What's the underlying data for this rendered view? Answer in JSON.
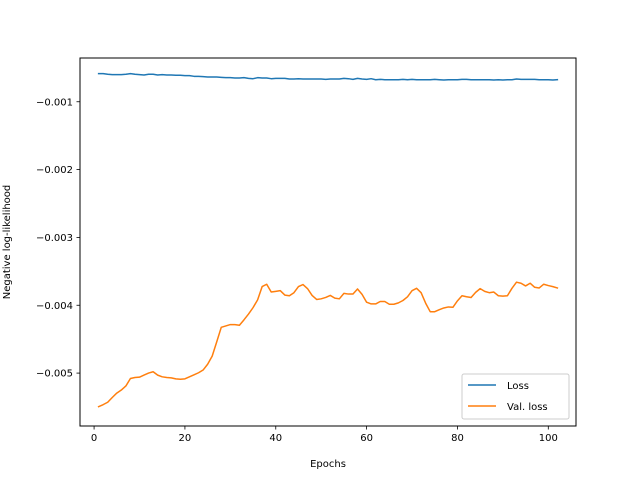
{
  "chart_data": {
    "type": "line",
    "title": "",
    "xlabel": "Epochs",
    "ylabel": "Negative log-likelihood",
    "xlim": [
      -3.1,
      106.1
    ],
    "ylim": [
      -0.00578,
      -0.000355
    ],
    "xticks": [
      0,
      20,
      40,
      60,
      80,
      100
    ],
    "xtick_labels": [
      "0",
      "20",
      "40",
      "60",
      "80",
      "100"
    ],
    "yticks": [
      -0.005,
      -0.004,
      -0.003,
      -0.002,
      -0.001
    ],
    "ytick_labels": [
      "−0.005",
      "−0.004",
      "−0.003",
      "−0.002",
      "−0.001"
    ],
    "grid": false,
    "legend_position": "lower-right",
    "series": [
      {
        "name": "Loss",
        "color": "#1f77b4",
        "x": [
          1,
          2,
          3,
          4,
          5,
          6,
          7,
          8,
          9,
          10,
          11,
          12,
          13,
          14,
          15,
          16,
          17,
          18,
          19,
          20,
          21,
          22,
          23,
          24,
          25,
          26,
          27,
          28,
          29,
          30,
          31,
          32,
          33,
          34,
          35,
          36,
          37,
          38,
          39,
          40,
          41,
          42,
          43,
          44,
          45,
          46,
          47,
          48,
          49,
          50,
          51,
          52,
          53,
          54,
          55,
          56,
          57,
          58,
          59,
          60,
          61,
          62,
          63,
          64,
          65,
          66,
          67,
          68,
          69,
          70,
          71,
          72,
          73,
          74,
          75,
          76,
          77,
          78,
          79,
          80,
          81,
          82,
          83,
          84,
          85,
          86,
          87,
          88,
          89,
          90,
          91,
          92,
          93,
          94,
          95,
          96,
          97,
          98,
          99,
          100,
          101,
          102
        ],
        "y": [
          -0.000585,
          -0.000585,
          -0.000595,
          -0.0006,
          -0.0006,
          -0.0006,
          -0.000595,
          -0.000585,
          -0.000595,
          -0.0006,
          -0.000605,
          -0.000595,
          -0.000595,
          -0.000605,
          -0.0006,
          -0.000605,
          -0.000605,
          -0.00061,
          -0.00061,
          -0.000615,
          -0.000615,
          -0.000625,
          -0.000625,
          -0.00063,
          -0.000635,
          -0.000635,
          -0.000635,
          -0.00064,
          -0.000645,
          -0.000645,
          -0.00065,
          -0.00065,
          -0.000645,
          -0.000655,
          -0.00066,
          -0.000645,
          -0.00065,
          -0.00065,
          -0.00066,
          -0.000655,
          -0.000655,
          -0.000655,
          -0.000665,
          -0.000665,
          -0.00066,
          -0.000665,
          -0.000665,
          -0.000665,
          -0.000665,
          -0.000665,
          -0.00067,
          -0.000665,
          -0.000665,
          -0.000665,
          -0.000655,
          -0.00066,
          -0.00067,
          -0.000655,
          -0.000665,
          -0.00067,
          -0.00066,
          -0.000675,
          -0.00067,
          -0.000675,
          -0.000675,
          -0.000675,
          -0.000675,
          -0.00067,
          -0.000675,
          -0.00067,
          -0.000675,
          -0.000675,
          -0.000675,
          -0.000675,
          -0.00067,
          -0.000675,
          -0.00068,
          -0.000675,
          -0.000675,
          -0.000675,
          -0.00067,
          -0.00067,
          -0.000675,
          -0.000675,
          -0.000675,
          -0.000675,
          -0.000675,
          -0.00068,
          -0.000675,
          -0.00068,
          -0.000675,
          -0.000675,
          -0.000665,
          -0.00067,
          -0.00067,
          -0.00067,
          -0.00067,
          -0.000675,
          -0.000675,
          -0.000675,
          -0.00068,
          -0.000675
        ]
      },
      {
        "name": "Val. loss",
        "color": "#ff7f0e",
        "x": [
          1,
          2,
          3,
          4,
          5,
          6,
          7,
          8,
          9,
          10,
          11,
          12,
          13,
          14,
          15,
          16,
          17,
          18,
          19,
          20,
          21,
          22,
          23,
          24,
          25,
          26,
          27,
          28,
          29,
          30,
          31,
          32,
          33,
          34,
          35,
          36,
          37,
          38,
          39,
          40,
          41,
          42,
          43,
          44,
          45,
          46,
          47,
          48,
          49,
          50,
          51,
          52,
          53,
          54,
          55,
          56,
          57,
          58,
          59,
          60,
          61,
          62,
          63,
          64,
          65,
          66,
          67,
          68,
          69,
          70,
          71,
          72,
          73,
          74,
          75,
          76,
          77,
          78,
          79,
          80,
          81,
          82,
          83,
          84,
          85,
          86,
          87,
          88,
          89,
          90,
          91,
          92,
          93,
          94,
          95,
          96,
          97,
          98,
          99,
          100,
          101,
          102
        ],
        "y": [
          -0.005495,
          -0.005465,
          -0.00543,
          -0.00536,
          -0.005295,
          -0.00525,
          -0.00519,
          -0.00508,
          -0.005065,
          -0.00506,
          -0.00503,
          -0.005,
          -0.00498,
          -0.00503,
          -0.005055,
          -0.005065,
          -0.00507,
          -0.005085,
          -0.00509,
          -0.005085,
          -0.005055,
          -0.005025,
          -0.004995,
          -0.004955,
          -0.00487,
          -0.00475,
          -0.00454,
          -0.004325,
          -0.004305,
          -0.004285,
          -0.004285,
          -0.004295,
          -0.004215,
          -0.00413,
          -0.004035,
          -0.00392,
          -0.003725,
          -0.00369,
          -0.003805,
          -0.003795,
          -0.003785,
          -0.00385,
          -0.00386,
          -0.003815,
          -0.003725,
          -0.003695,
          -0.003755,
          -0.003855,
          -0.003915,
          -0.003905,
          -0.003885,
          -0.003855,
          -0.003895,
          -0.003905,
          -0.003825,
          -0.003835,
          -0.003835,
          -0.00376,
          -0.00384,
          -0.003955,
          -0.00398,
          -0.00398,
          -0.003945,
          -0.003945,
          -0.003985,
          -0.003985,
          -0.003965,
          -0.00393,
          -0.003875,
          -0.003785,
          -0.00375,
          -0.003815,
          -0.00397,
          -0.004095,
          -0.004095,
          -0.004065,
          -0.00404,
          -0.004025,
          -0.00403,
          -0.003935,
          -0.00386,
          -0.003875,
          -0.003885,
          -0.00381,
          -0.003755,
          -0.003795,
          -0.003815,
          -0.003805,
          -0.00386,
          -0.003865,
          -0.00386,
          -0.00375,
          -0.00366,
          -0.003675,
          -0.003715,
          -0.003675,
          -0.003735,
          -0.003745,
          -0.00369,
          -0.00371,
          -0.003725,
          -0.003745
        ]
      }
    ]
  }
}
